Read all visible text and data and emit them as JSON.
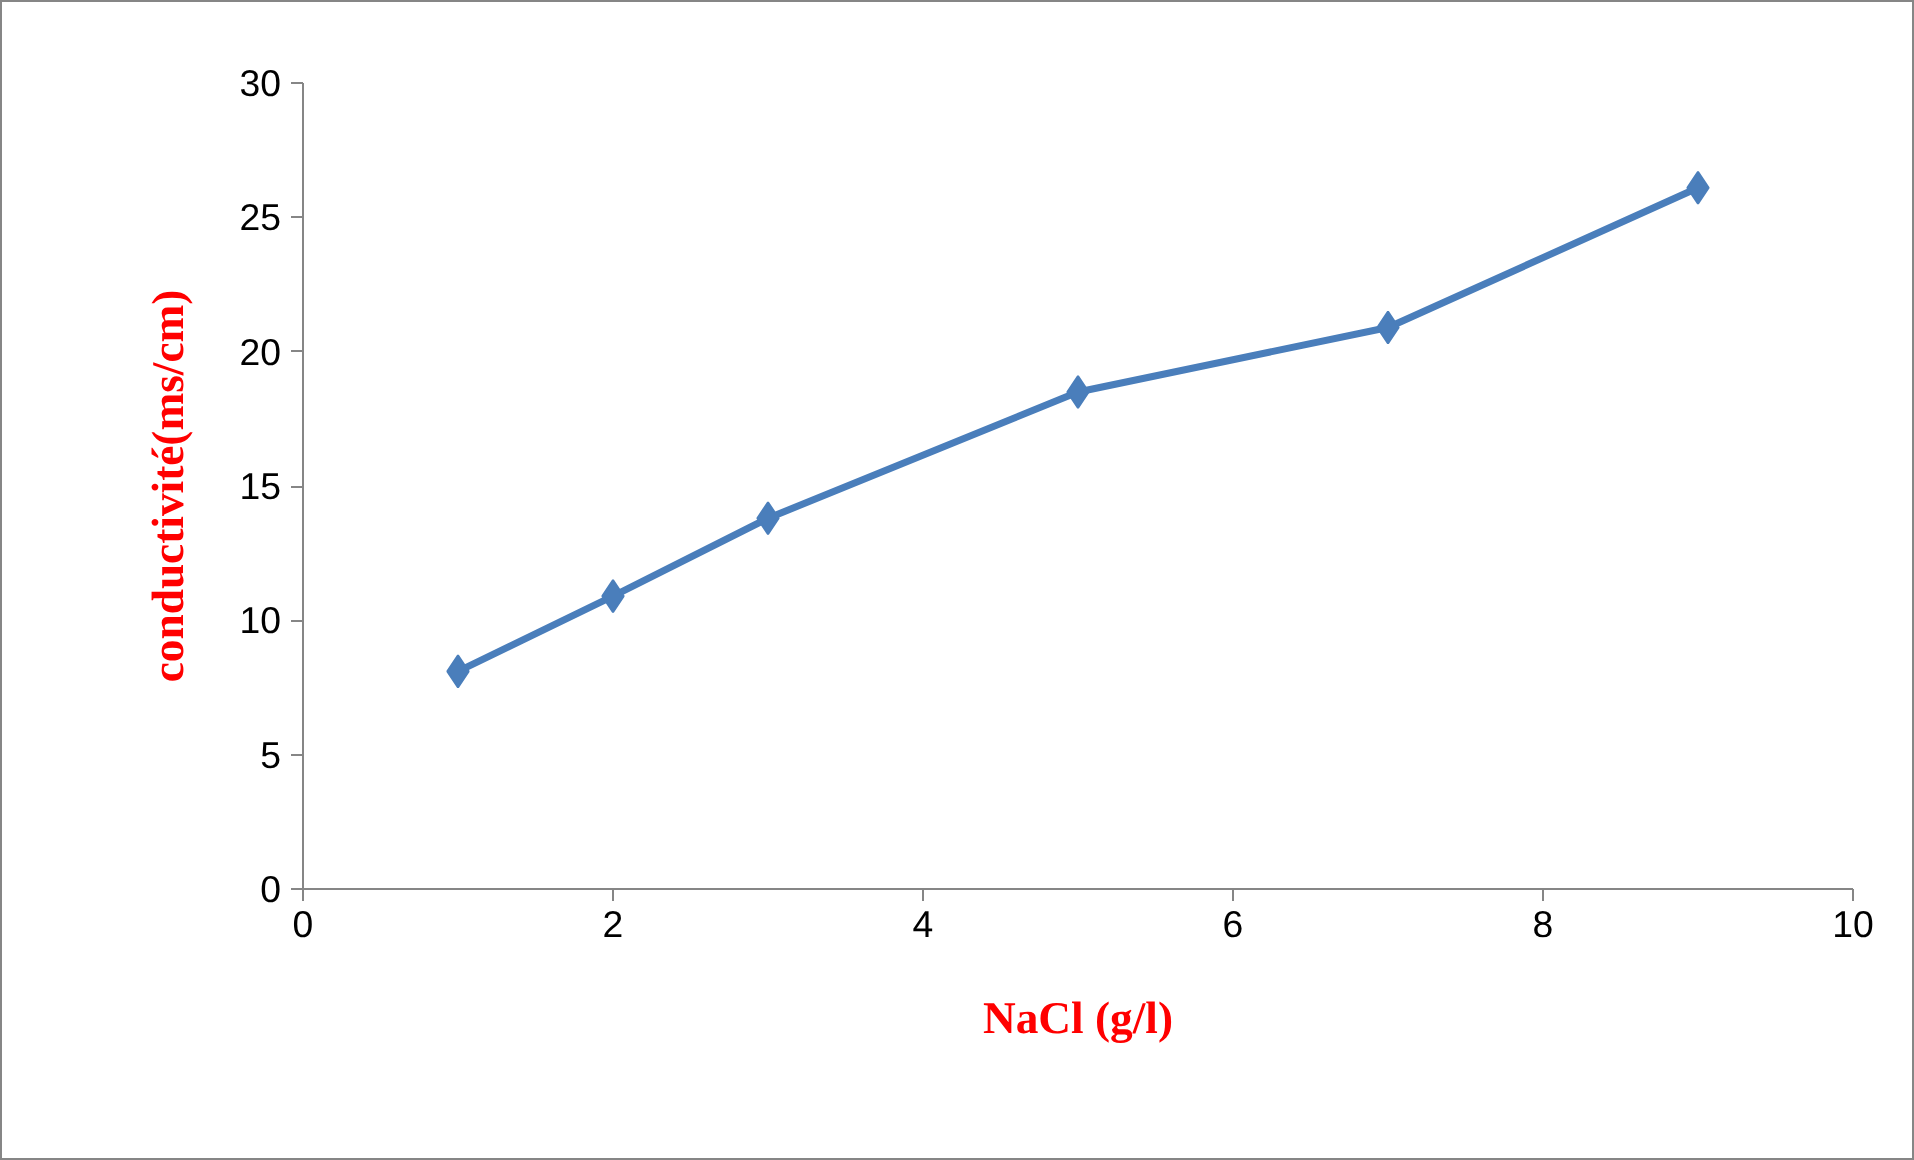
{
  "chart_data": {
    "type": "line",
    "xlabel": "NaCl (g/l)",
    "ylabel": "conductivité(ms/cm)",
    "x": [
      1,
      2,
      3,
      5,
      7,
      9
    ],
    "series": [
      {
        "color": "#4a7ebb",
        "values": [
          8.1,
          10.9,
          13.8,
          18.5,
          20.9,
          26.1
        ]
      }
    ],
    "xlim": [
      0,
      10
    ],
    "xticks": [
      0,
      2,
      4,
      6,
      8,
      10
    ],
    "ylim": [
      0,
      30
    ],
    "yticks": [
      0,
      5,
      10,
      15,
      20,
      25,
      30
    ],
    "grid": false,
    "marker": "diamond",
    "line_style": "solid"
  }
}
